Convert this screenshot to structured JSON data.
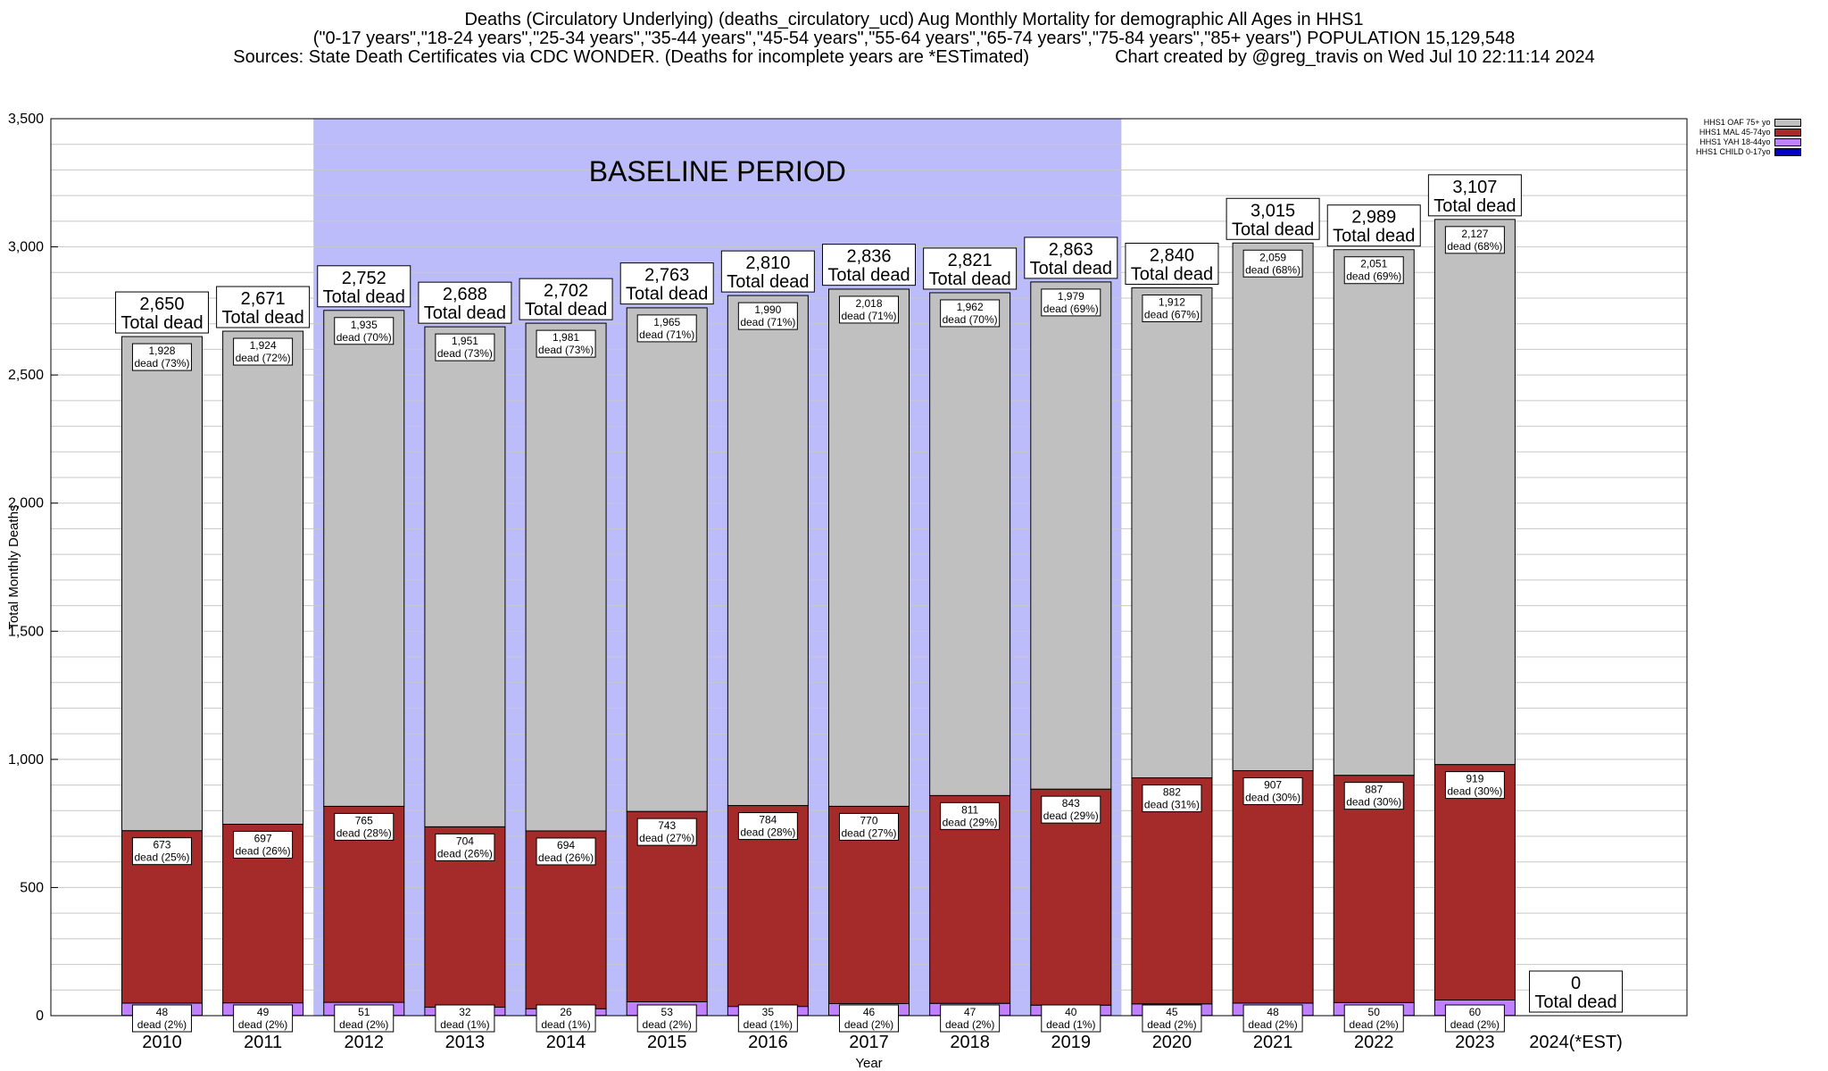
{
  "header": {
    "line1": "Deaths (Circulatory Underlying) (deaths_circulatory_ucd) Aug Monthly Mortality for demographic All Ages in HHS1",
    "line2": "(\"0-17 years\",\"18-24 years\",\"25-34 years\",\"35-44 years\",\"45-54 years\",\"55-64 years\",\"65-74 years\",\"75-84 years\",\"85+ years\") POPULATION 15,129,548",
    "line3_left": "Sources: State Death Certificates via CDC WONDER. (Deaths for incomplete years are *ESTimated)",
    "line3_right": "Chart created by @greg_travis on Wed Jul 10 22:11:14 2024"
  },
  "chart_data": {
    "type": "bar",
    "stacked": true,
    "title": "Deaths (Circulatory Underlying) (deaths_circulatory_ucd) Aug Monthly Mortality for demographic All Ages in HHS1",
    "xlabel": "Year",
    "ylabel": "Total Monthly Deaths",
    "ylim": [
      0,
      3500
    ],
    "yticks": [
      0,
      500,
      1000,
      1500,
      2000,
      2500,
      3000,
      3500
    ],
    "ytick_labels": [
      "0",
      "500",
      "1,000",
      "1,500",
      "2,000",
      "2,500",
      "3,000",
      "3,500"
    ],
    "categories": [
      "2010",
      "2011",
      "2012",
      "2013",
      "2014",
      "2015",
      "2016",
      "2017",
      "2018",
      "2019",
      "2020",
      "2021",
      "2022",
      "2023",
      "2024(*EST)"
    ],
    "baseline_label": "BASELINE PERIOD",
    "baseline_range": [
      "2012",
      "2019"
    ],
    "total_suffix": "Total dead",
    "dead_word": "dead",
    "totals": [
      2650,
      2671,
      2752,
      2688,
      2702,
      2763,
      2810,
      2836,
      2821,
      2863,
      2840,
      3015,
      2989,
      3107,
      0
    ],
    "total_labels": [
      "2,650",
      "2,671",
      "2,752",
      "2,688",
      "2,702",
      "2,763",
      "2,810",
      "2,836",
      "2,821",
      "2,863",
      "2,840",
      "3,015",
      "2,989",
      "3,107",
      "0"
    ],
    "series": [
      {
        "name": "HHS1 CHILD 0-17yo",
        "color": "#0000cc",
        "values": [
          1,
          1,
          1,
          1,
          1,
          1,
          1,
          1,
          1,
          1,
          1,
          1,
          1,
          1,
          0
        ],
        "labels": [
          "",
          "",
          "",
          "",
          "",
          "",
          "",
          "",
          "",
          "",
          "",
          "",
          "",
          "",
          ""
        ],
        "pcts": [
          "",
          "",
          "",
          "",
          "",
          "",
          "",
          "",
          "",
          "",
          "",
          "",
          "",
          "",
          ""
        ]
      },
      {
        "name": "HHS1 YAH 18-44yo",
        "color": "#c080ff",
        "values": [
          48,
          49,
          51,
          32,
          26,
          53,
          35,
          46,
          47,
          40,
          45,
          48,
          50,
          60,
          0
        ],
        "labels": [
          "48",
          "49",
          "51",
          "32",
          "26",
          "53",
          "35",
          "46",
          "47",
          "40",
          "45",
          "48",
          "50",
          "60",
          ""
        ],
        "pcts": [
          "(2%)",
          "(2%)",
          "(2%)",
          "(1%)",
          "(1%)",
          "(2%)",
          "(1%)",
          "(2%)",
          "(2%)",
          "(1%)",
          "(2%)",
          "(2%)",
          "(2%)",
          "(2%)",
          ""
        ]
      },
      {
        "name": "HHS1 MAL 45-74yo",
        "color": "#a52a2a",
        "values": [
          673,
          697,
          765,
          704,
          694,
          743,
          784,
          770,
          811,
          843,
          882,
          907,
          887,
          919,
          0
        ],
        "labels": [
          "673",
          "697",
          "765",
          "704",
          "694",
          "743",
          "784",
          "770",
          "811",
          "843",
          "882",
          "907",
          "887",
          "919",
          ""
        ],
        "pcts": [
          "(25%)",
          "(26%)",
          "(28%)",
          "(26%)",
          "(26%)",
          "(27%)",
          "(28%)",
          "(27%)",
          "(29%)",
          "(29%)",
          "(31%)",
          "(30%)",
          "(30%)",
          "(30%)",
          ""
        ]
      },
      {
        "name": "HHS1 OAF 75+ yo",
        "color": "#c0c0c0",
        "values": [
          1928,
          1924,
          1935,
          1951,
          1981,
          1965,
          1990,
          2018,
          1962,
          1979,
          1912,
          2059,
          2051,
          2127,
          0
        ],
        "labels": [
          "1,928",
          "1,924",
          "1,935",
          "1,951",
          "1,981",
          "1,965",
          "1,990",
          "2,018",
          "1,962",
          "1,979",
          "1,912",
          "2,059",
          "2,051",
          "2,127",
          ""
        ],
        "pcts": [
          "(73%)",
          "(72%)",
          "(70%)",
          "(73%)",
          "(73%)",
          "(71%)",
          "(71%)",
          "(71%)",
          "(70%)",
          "(69%)",
          "(67%)",
          "(68%)",
          "(69%)",
          "(68%)",
          ""
        ]
      }
    ],
    "legend_position": "top-right"
  }
}
